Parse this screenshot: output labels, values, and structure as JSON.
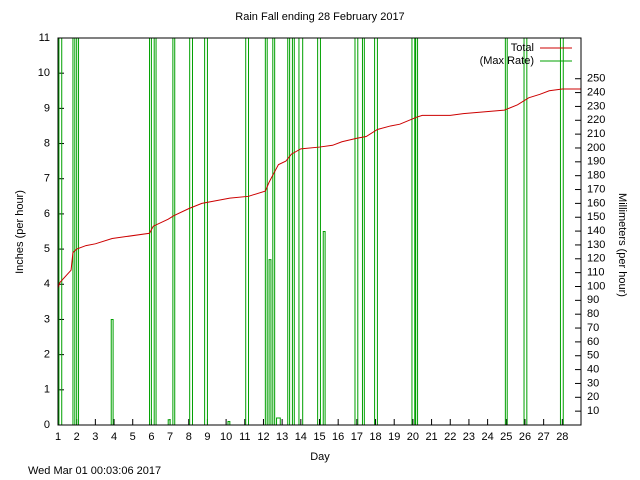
{
  "chart_data": {
    "type": "line",
    "title": "Rain Fall ending 28 February 2017",
    "x_label": "Day",
    "y_label": "Inches (per hour)",
    "y2_label": "Millimeters (per hour)",
    "timestamp": "Wed Mar 01 00:03:06 2017",
    "xlim": [
      1,
      29
    ],
    "xticks": [
      1,
      2,
      3,
      4,
      5,
      6,
      7,
      8,
      9,
      10,
      11,
      12,
      13,
      14,
      15,
      16,
      17,
      18,
      19,
      20,
      21,
      22,
      23,
      24,
      25,
      26,
      27,
      28
    ],
    "ylim": [
      0,
      11
    ],
    "yticks": [
      0,
      1,
      2,
      3,
      4,
      5,
      6,
      7,
      8,
      9,
      10,
      11
    ],
    "y2lim": [
      0,
      279.4
    ],
    "y2ticks": [
      10,
      20,
      30,
      40,
      50,
      60,
      70,
      80,
      90,
      100,
      110,
      120,
      130,
      140,
      150,
      160,
      170,
      180,
      190,
      200,
      210,
      220,
      230,
      240,
      250
    ],
    "legend_position": "top-right",
    "series": [
      {
        "name": "Total",
        "color": "#cc0000",
        "x": [
          1,
          1.1,
          1.7,
          1.8,
          2.0,
          2.5,
          3.0,
          3.9,
          5.9,
          6.1,
          6.9,
          7.2,
          8.0,
          8.7,
          10.2,
          11.2,
          12.1,
          12.3,
          12.6,
          12.8,
          13.2,
          13.5,
          14.0,
          15.0,
          15.7,
          16.2,
          17.0,
          17.5,
          18.1,
          18.8,
          19.3,
          20.2,
          20.5,
          22.0,
          22.7,
          24.9,
          25.6,
          26.2,
          26.8,
          27.3,
          28.0,
          29
        ],
        "values": [
          3.9,
          4.05,
          4.4,
          4.9,
          5.0,
          5.1,
          5.15,
          5.3,
          5.45,
          5.65,
          5.85,
          5.95,
          6.15,
          6.3,
          6.45,
          6.5,
          6.65,
          6.9,
          7.2,
          7.4,
          7.5,
          7.7,
          7.85,
          7.9,
          7.95,
          8.05,
          8.15,
          8.2,
          8.4,
          8.5,
          8.55,
          8.75,
          8.8,
          8.8,
          8.85,
          8.95,
          9.1,
          9.3,
          9.4,
          9.5,
          9.55,
          9.55
        ]
      },
      {
        "name": "(Max Rate)",
        "color": "#00a000",
        "x": [
          1.05,
          1.05,
          1.2,
          1.2,
          1.8,
          1.8,
          1.9,
          1.9,
          2.0,
          2.0,
          2.1,
          2.1,
          3.85,
          3.85,
          3.95,
          3.95,
          5.9,
          5.9,
          6.0,
          6.0,
          6.15,
          6.15,
          6.25,
          6.25,
          6.9,
          6.9,
          7.0,
          7.0,
          7.15,
          7.15,
          7.25,
          7.25,
          8.05,
          8.05,
          8.2,
          8.2,
          8.85,
          8.85,
          9.0,
          9.0,
          10.1,
          10.1,
          10.2,
          10.2,
          11.05,
          11.05,
          11.2,
          11.2,
          12.1,
          12.1,
          12.2,
          12.2,
          12.3,
          12.3,
          12.4,
          12.4,
          12.5,
          12.5,
          12.6,
          12.6,
          12.7,
          12.7,
          12.9,
          12.9,
          13.3,
          13.3,
          13.4,
          13.4,
          13.55,
          13.55,
          13.65,
          13.65,
          13.9,
          13.9,
          14.1,
          14.1,
          14.9,
          14.9,
          15.05,
          15.05,
          15.2,
          15.2,
          15.3,
          15.3,
          16.9,
          16.9,
          17.05,
          17.05,
          17.3,
          17.3,
          17.4,
          17.4,
          17.95,
          17.95,
          18.1,
          18.1,
          19.95,
          19.95,
          20.1,
          20.1,
          20.15,
          20.15,
          20.25,
          20.25,
          24.95,
          24.95,
          25.05,
          25.05,
          25.95,
          25.95,
          26.1,
          26.1,
          27.9,
          27.9,
          28.05,
          28.05
        ],
        "values": [
          0,
          11,
          11,
          0,
          0,
          11,
          11,
          0,
          0,
          11,
          11,
          0,
          0,
          3,
          3,
          0,
          0,
          11,
          11,
          0,
          0,
          11,
          11,
          0,
          0,
          0.15,
          0.15,
          0,
          0,
          11,
          11,
          0,
          0,
          11,
          11,
          0,
          0,
          11,
          11,
          0,
          0,
          0.1,
          0.1,
          0,
          0,
          11,
          11,
          0,
          0,
          11,
          11,
          0,
          0,
          4.7,
          4.7,
          0,
          0,
          11,
          11,
          0,
          0,
          0.2,
          0.2,
          0,
          0,
          11,
          11,
          0,
          0,
          11,
          11,
          0,
          0,
          11,
          11,
          0,
          0,
          11,
          11,
          0,
          0,
          5.5,
          5.5,
          0,
          0,
          11,
          11,
          0,
          0,
          11,
          11,
          0,
          0,
          11,
          11,
          0,
          0,
          11,
          11,
          0,
          0,
          11,
          11,
          0,
          0,
          11,
          11,
          0,
          0,
          11,
          11,
          0,
          0,
          11,
          11,
          0
        ]
      }
    ]
  }
}
